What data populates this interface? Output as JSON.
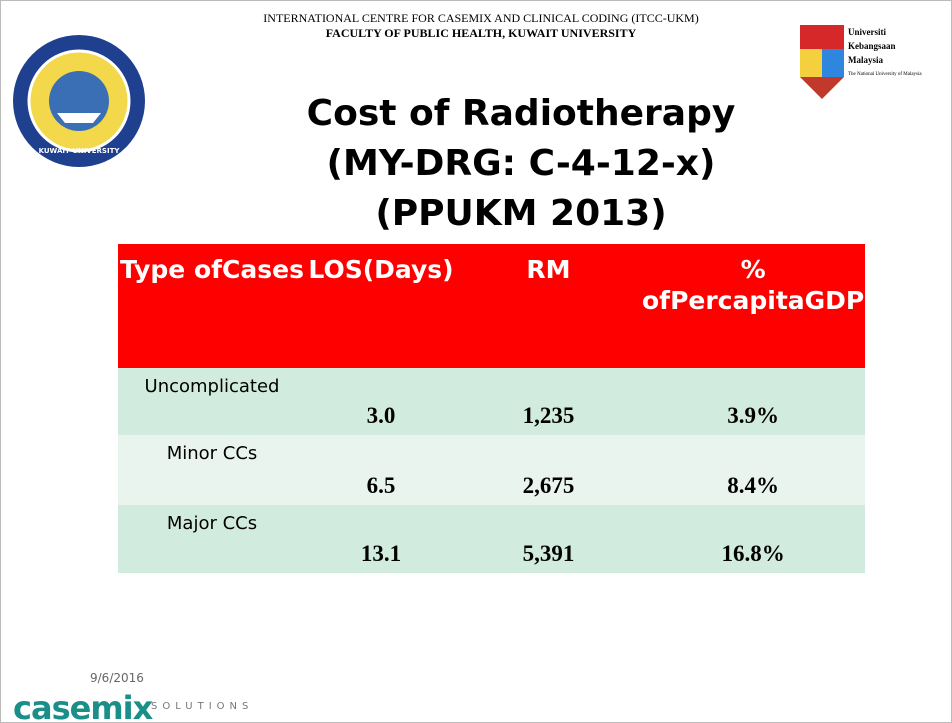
{
  "header": {
    "line1": "INTERNATIONAL CENTRE FOR CASEMIX AND CLINICAL CODING (ITCC-UKM)",
    "line2": "FACULTY OF PUBLIC HEALTH, KUWAIT UNIVERSITY"
  },
  "logos": {
    "kuwait": "KUWAIT UNIVERSITY",
    "ukm": [
      "Universiti",
      "Kebangsaan",
      "Malaysia"
    ],
    "ukm_motto": "The National University of Malaysia"
  },
  "title": [
    "Cost of Radiotherapy",
    "(MY-DRG: C-4-12-x)",
    "(PPUKM 2013)"
  ],
  "table": {
    "header": [
      [
        "Type of",
        "Cases"
      ],
      [
        "LOS",
        "(Days)"
      ],
      [
        "RM"
      ],
      [
        "% of",
        "Percapita",
        "GDP"
      ]
    ],
    "rows": [
      [
        "Uncomplicated",
        "3.0",
        "1,235",
        "3.9%"
      ],
      [
        "Minor CCs",
        "6.5",
        "2,675",
        "8.4%"
      ],
      [
        "Major CCs",
        "13.1",
        "5,391",
        "16.8%"
      ]
    ]
  },
  "footer": {
    "date": "9/6/2016",
    "brand": "casemix",
    "tagline": "SOLUTIONS"
  }
}
